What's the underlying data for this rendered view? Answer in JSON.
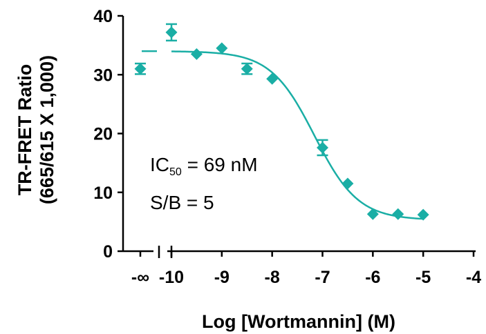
{
  "chart_data": {
    "type": "scatter",
    "xlabel": "Log [Wortmannin] (M)",
    "ylabel_line1": "TR-FRET Ratio",
    "ylabel_line2": "(665/615 X 1,000)",
    "xlim": [
      -10,
      -4
    ],
    "ylim": [
      0,
      40
    ],
    "y_ticks": [
      "0",
      "10",
      "20",
      "30",
      "40"
    ],
    "x_ticks": [
      "-∞",
      "-10",
      "-9",
      "-8",
      "-7",
      "-6",
      "-5",
      "-4"
    ],
    "grid": false,
    "color": "#1aaea5",
    "baseline_point": {
      "x_label": "-∞",
      "y": 31.0,
      "err": 0.9
    },
    "points": [
      {
        "x": -10.0,
        "y": 37.2,
        "err": 1.4
      },
      {
        "x": -9.5,
        "y": 33.5,
        "err": 0
      },
      {
        "x": -9.0,
        "y": 34.5,
        "err": 0
      },
      {
        "x": -8.5,
        "y": 31.0,
        "err": 0.9
      },
      {
        "x": -8.0,
        "y": 29.3,
        "err": 0
      },
      {
        "x": -7.0,
        "y": 17.6,
        "err": 1.3
      },
      {
        "x": -6.5,
        "y": 11.5,
        "err": 0
      },
      {
        "x": -6.0,
        "y": 6.3,
        "err": 0
      },
      {
        "x": -5.5,
        "y": 6.3,
        "err": 0
      },
      {
        "x": -5.0,
        "y": 6.2,
        "err": 0
      }
    ],
    "fit": {
      "top": 34.0,
      "bottom": 5.3,
      "log_ic50": -7.16,
      "hill": 1.0
    },
    "annotations": {
      "ic50_prefix": "IC",
      "ic50_sub": "50",
      "ic50_value": " = 69 nM",
      "sb": "S/B = 5"
    }
  }
}
